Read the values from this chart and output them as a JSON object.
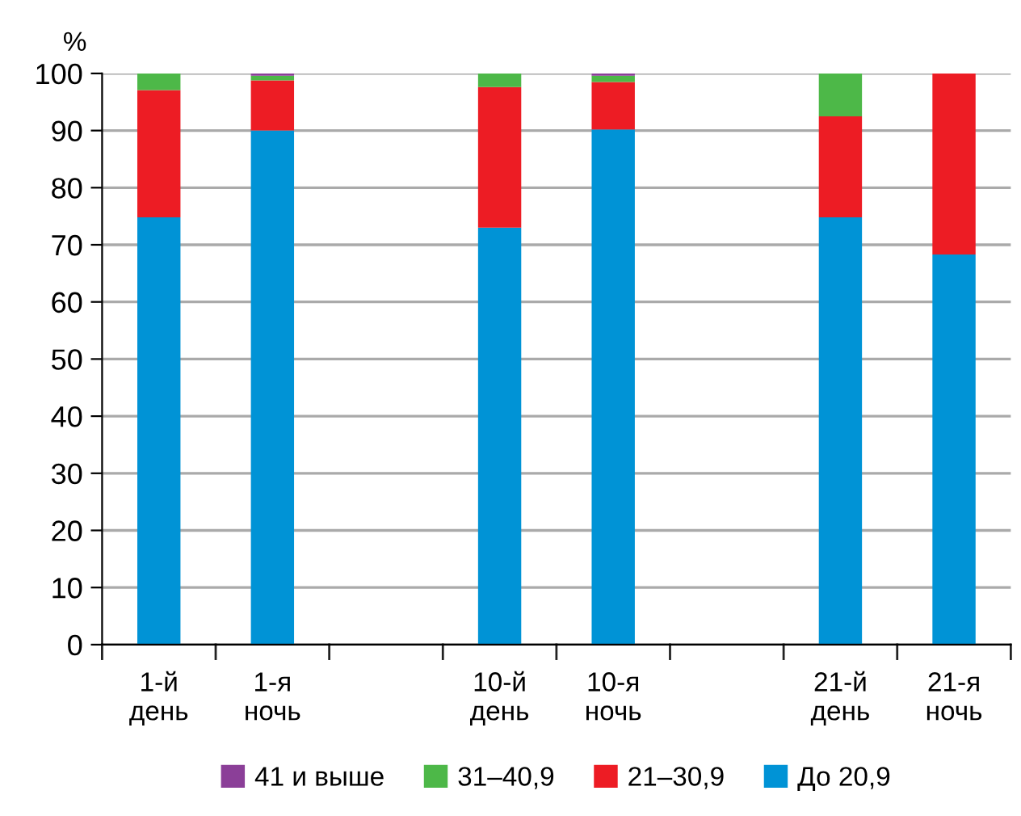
{
  "chart_data": {
    "type": "bar",
    "stacked": true,
    "ylabel": "%",
    "categories": [
      "1-й\nдень",
      "1-я\nночь",
      null,
      "10-й\nдень",
      "10-я\nночь",
      null,
      "21-й\nдень",
      "21-я\nночь"
    ],
    "series": [
      {
        "name": "До 20,9",
        "color": "#0093d6",
        "values": [
          74.8,
          90,
          null,
          73,
          90.2,
          null,
          74.8,
          68.3
        ]
      },
      {
        "name": "21–30,9",
        "color": "#ed1c24",
        "values": [
          22.3,
          8.8,
          null,
          24.6,
          8.3,
          null,
          17.7,
          31.7
        ]
      },
      {
        "name": "31–40,9",
        "color": "#4db848",
        "values": [
          2.9,
          0.8,
          null,
          2.4,
          1.1,
          null,
          7.5,
          0
        ]
      },
      {
        "name": "41 и выше",
        "color": "#8b3f98",
        "values": [
          0,
          0.4,
          null,
          0,
          0.4,
          null,
          0,
          0
        ]
      }
    ],
    "ylim": [
      0,
      100
    ],
    "yticks": [
      0,
      10,
      20,
      30,
      40,
      50,
      60,
      70,
      80,
      90,
      100
    ],
    "grid": "y",
    "legend": "bottom"
  }
}
